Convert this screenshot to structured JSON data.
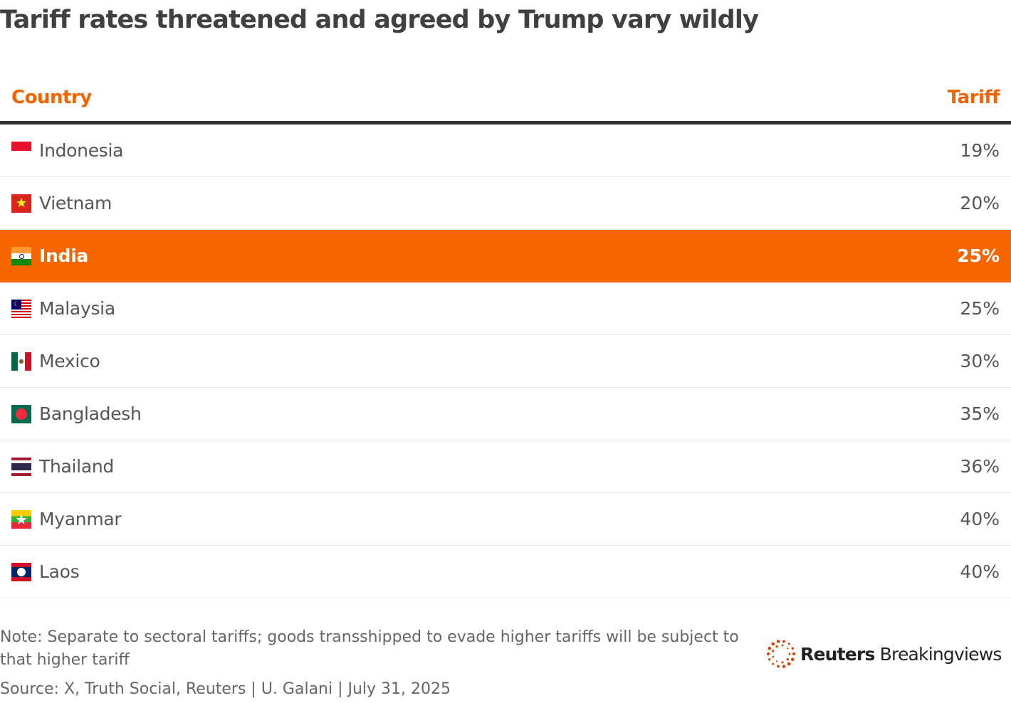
{
  "title": "Tariff rates threatened and agreed by Trump vary wildly",
  "colors": {
    "accent": "#f26300",
    "highlight_row": "#f76500",
    "text": "#404040"
  },
  "chart_data": {
    "type": "table",
    "columns": [
      "Country",
      "Tariff"
    ],
    "rows": [
      {
        "country": "Indonesia",
        "tariff": "19%",
        "flag": "indonesia-flag"
      },
      {
        "country": "Vietnam",
        "tariff": "20%",
        "flag": "vietnam-flag"
      },
      {
        "country": "India",
        "tariff": "25%",
        "flag": "india-flag",
        "highlighted": true
      },
      {
        "country": "Malaysia",
        "tariff": "25%",
        "flag": "malaysia-flag"
      },
      {
        "country": "Mexico",
        "tariff": "30%",
        "flag": "mexico-flag"
      },
      {
        "country": "Bangladesh",
        "tariff": "35%",
        "flag": "bangladesh-flag"
      },
      {
        "country": "Thailand",
        "tariff": "36%",
        "flag": "thailand-flag"
      },
      {
        "country": "Myanmar",
        "tariff": "40%",
        "flag": "myanmar-flag"
      },
      {
        "country": "Laos",
        "tariff": "40%",
        "flag": "laos-flag"
      }
    ]
  },
  "note": "Note: Separate to sectoral tariffs; goods transshipped to evade higher tariffs will be subject to that higher tariff",
  "source": "Source: X, Truth Social, Reuters | U. Galani | July 31, 2025",
  "logo": {
    "bold": "Reuters",
    "regular": "Breakingviews"
  }
}
